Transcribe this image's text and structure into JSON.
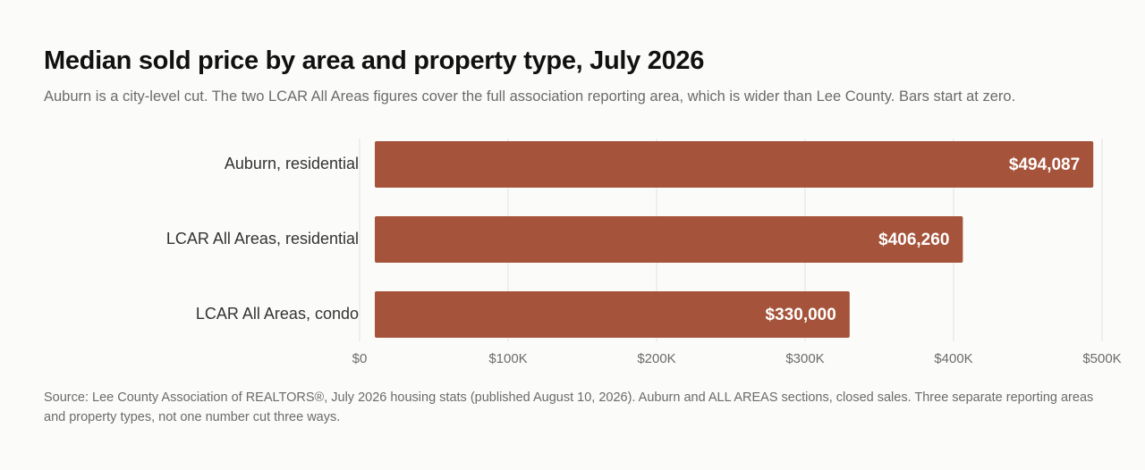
{
  "chart_data": {
    "type": "bar",
    "orientation": "horizontal",
    "title": "Median sold price by area and property type, July 2026",
    "subtitle": "Auburn is a city-level cut. The two LCAR All Areas figures cover the full association reporting area, which is wider than Lee County. Bars start at zero.",
    "categories": [
      "Auburn, residential",
      "LCAR All Areas, residential",
      "LCAR All Areas, condo"
    ],
    "values": [
      494087,
      406260,
      330000
    ],
    "value_labels": [
      "$494,087",
      "$406,260",
      "$330,000"
    ],
    "xlim": [
      0,
      500000
    ],
    "ticks": [
      0,
      100000,
      200000,
      300000,
      400000,
      500000
    ],
    "tick_labels": [
      "$0",
      "$100K",
      "$200K",
      "$300K",
      "$400K",
      "$500K"
    ],
    "grid": "vertical",
    "bar_color": "#a5533a"
  },
  "source": "Source: Lee County Association of REALTORS®, July 2026 housing stats (published August 10, 2026). Auburn and ALL AREAS sections, closed sales. Three separate reporting areas and property types, not one number cut three ways."
}
